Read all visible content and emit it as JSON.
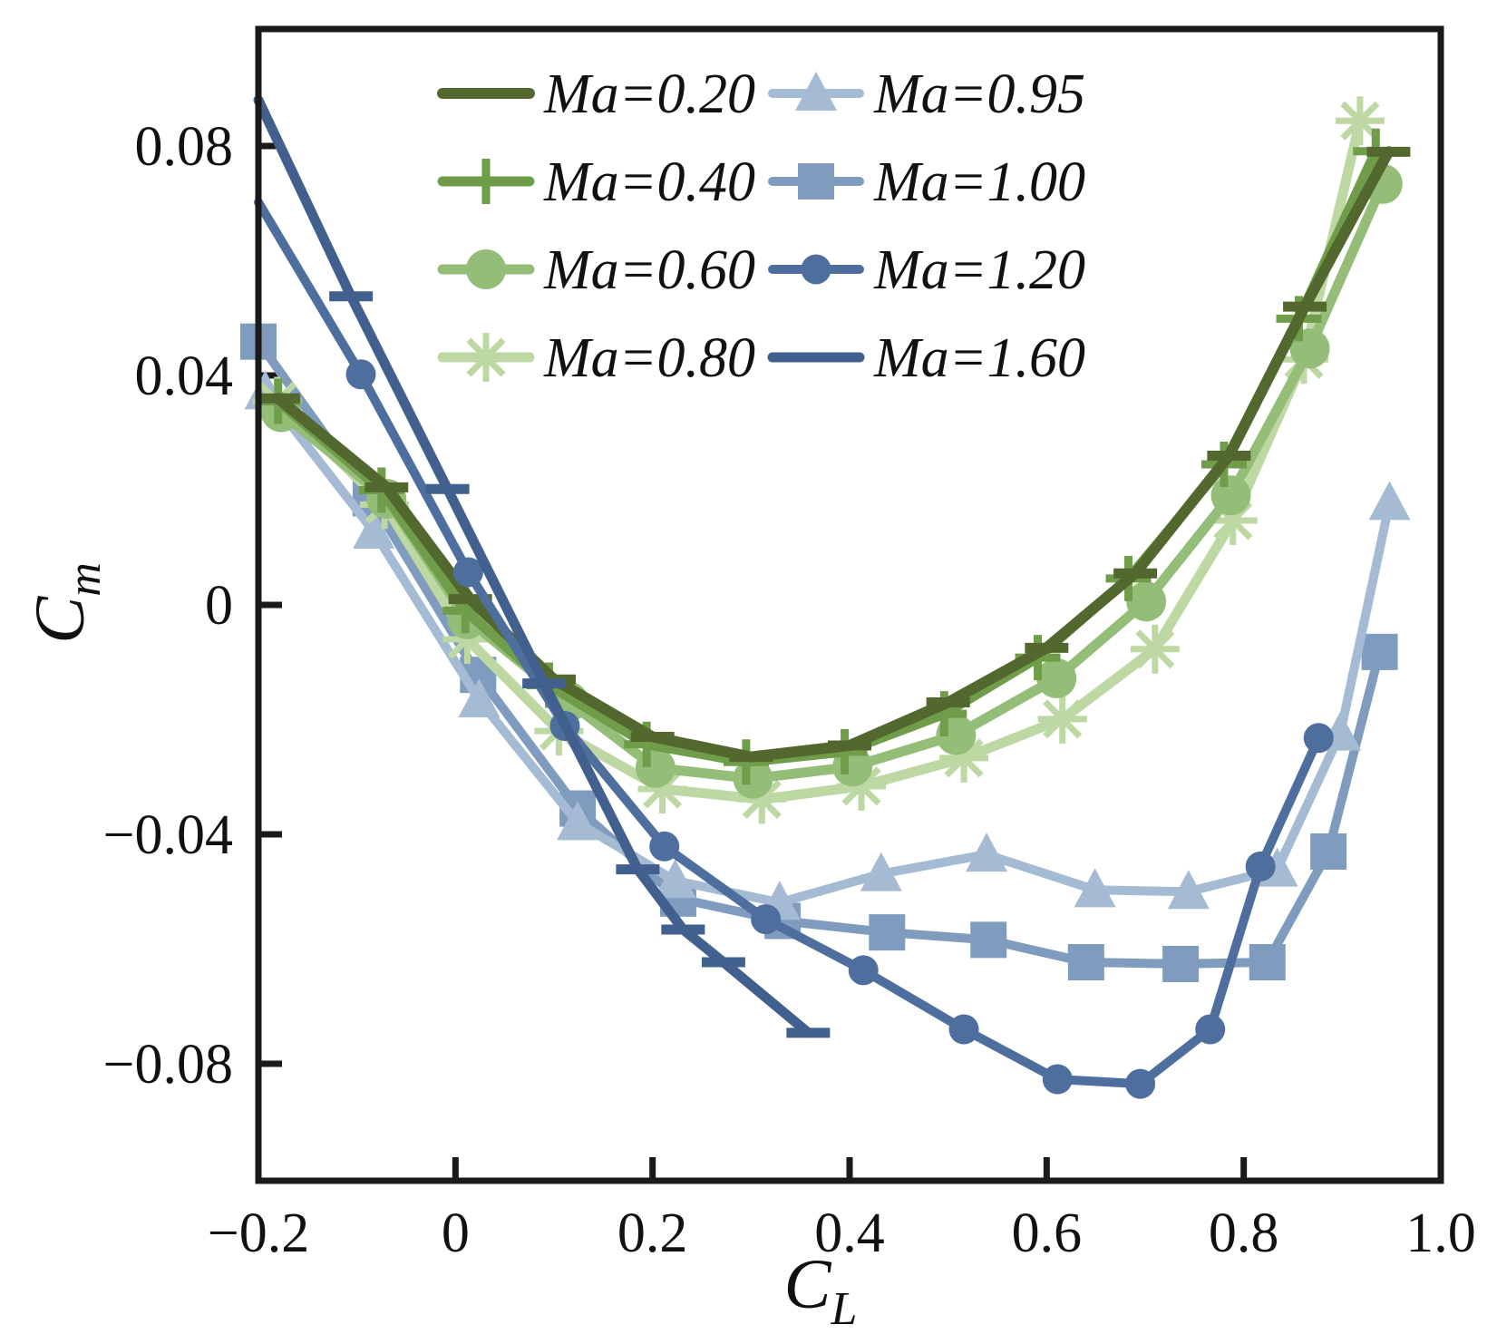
{
  "figure": {
    "background": "#ffffff",
    "frame_color": "#1a1a1a"
  },
  "chart_data": {
    "type": "line",
    "title": "",
    "xlabel_main": "C",
    "xlabel_sub": "L",
    "ylabel_main": "C",
    "ylabel_sub": "m",
    "xlim": [
      -0.2,
      1.0
    ],
    "ylim": [
      -0.1004,
      0.1004
    ],
    "grid": false,
    "legend_position": "upper center, two columns, no frame",
    "x_ticks": [
      {
        "value": -0.2,
        "label": "−0.2",
        "mark": false
      },
      {
        "value": 0.0,
        "label": "0",
        "mark": true
      },
      {
        "value": 0.2,
        "label": "0.2",
        "mark": true
      },
      {
        "value": 0.4,
        "label": "0.4",
        "mark": true
      },
      {
        "value": 0.6,
        "label": "0.6",
        "mark": true
      },
      {
        "value": 0.8,
        "label": "0.8",
        "mark": true
      },
      {
        "value": 1.0,
        "label": "1.0",
        "mark": false
      }
    ],
    "y_ticks": [
      {
        "value": 0.08,
        "label": "0.08",
        "mark": true
      },
      {
        "value": 0.04,
        "label": "0.04",
        "mark": true
      },
      {
        "value": 0.0,
        "label": "0",
        "mark": true
      },
      {
        "value": -0.04,
        "label": "−0.04",
        "mark": true
      },
      {
        "value": -0.08,
        "label": "−0.08",
        "mark": true
      }
    ],
    "draw_order": [
      "Ma=1.00",
      "Ma=0.95",
      "Ma=0.80",
      "Ma=0.60",
      "Ma=0.40",
      "Ma=0.20",
      "Ma=1.20",
      "Ma=1.60"
    ],
    "series": [
      {
        "label": "Ma=0.20",
        "color": "#52682f",
        "marker": "dash",
        "line_width": 12,
        "marker_from_index": 0,
        "points": [
          [
            -0.18,
            0.036
          ],
          [
            -0.07,
            0.0205
          ],
          [
            0.015,
            0.001
          ],
          [
            0.1,
            -0.013
          ],
          [
            0.2,
            -0.023
          ],
          [
            0.3,
            -0.0265
          ],
          [
            0.4,
            -0.0245
          ],
          [
            0.5,
            -0.017
          ],
          [
            0.6,
            -0.0075
          ],
          [
            0.69,
            0.0055
          ],
          [
            0.785,
            0.026
          ],
          [
            0.862,
            0.052
          ],
          [
            0.947,
            0.079
          ]
        ]
      },
      {
        "label": "Ma=0.40",
        "color": "#6f9d49",
        "marker": "plus",
        "line_width": 11,
        "marker_from_index": 0,
        "points": [
          [
            -0.18,
            0.0355
          ],
          [
            -0.075,
            0.02
          ],
          [
            0.01,
            -0.001
          ],
          [
            0.095,
            -0.014
          ],
          [
            0.194,
            -0.0243
          ],
          [
            0.295,
            -0.0274
          ],
          [
            0.395,
            -0.0256
          ],
          [
            0.496,
            -0.019
          ],
          [
            0.591,
            -0.0092
          ],
          [
            0.683,
            0.0046
          ],
          [
            0.78,
            0.0245
          ],
          [
            0.856,
            0.0499
          ],
          [
            0.934,
            0.0791
          ]
        ]
      },
      {
        "label": "Ma=0.60",
        "color": "#94bd77",
        "marker": "circle",
        "line_width": 11,
        "marker_from_index": 0,
        "points": [
          [
            -0.177,
            0.0336
          ],
          [
            -0.07,
            0.0185
          ],
          [
            0.012,
            -0.0025
          ],
          [
            0.115,
            -0.0169
          ],
          [
            0.203,
            -0.0284
          ],
          [
            0.302,
            -0.0303
          ],
          [
            0.403,
            -0.0282
          ],
          [
            0.508,
            -0.0227
          ],
          [
            0.61,
            -0.0128
          ],
          [
            0.701,
            0.0006
          ],
          [
            0.787,
            0.0191
          ],
          [
            0.867,
            0.0447
          ],
          [
            0.941,
            0.0734
          ]
        ]
      },
      {
        "label": "Ma=0.80",
        "color": "#bdd8a3",
        "marker": "asterisk",
        "line_width": 11,
        "marker_from_index": 0,
        "points": [
          [
            -0.181,
            0.0355
          ],
          [
            -0.072,
            0.0175
          ],
          [
            0.012,
            -0.006
          ],
          [
            0.105,
            -0.022
          ],
          [
            0.21,
            -0.0321
          ],
          [
            0.311,
            -0.0339
          ],
          [
            0.412,
            -0.0316
          ],
          [
            0.516,
            -0.0267
          ],
          [
            0.616,
            -0.0199
          ],
          [
            0.71,
            -0.0077
          ],
          [
            0.789,
            0.0147
          ],
          [
            0.861,
            0.0428
          ],
          [
            0.918,
            0.0844
          ]
        ]
      },
      {
        "label": "Ma=0.95",
        "color": "#a5bad3",
        "marker": "triangle",
        "line_width": 10,
        "marker_from_index": 0,
        "points": [
          [
            -0.193,
            0.0371
          ],
          [
            -0.083,
            0.0128
          ],
          [
            0.024,
            -0.0166
          ],
          [
            0.124,
            -0.038
          ],
          [
            0.223,
            -0.0481
          ],
          [
            0.329,
            -0.0519
          ],
          [
            0.432,
            -0.0469
          ],
          [
            0.539,
            -0.0435
          ],
          [
            0.649,
            -0.0497
          ],
          [
            0.744,
            -0.05
          ],
          [
            0.834,
            -0.0461
          ],
          [
            0.898,
            -0.0224
          ],
          [
            0.948,
            0.0178
          ]
        ]
      },
      {
        "label": "Ma=1.00",
        "color": "#7f9cbe",
        "marker": "square",
        "line_width": 10,
        "marker_from_index": 0,
        "points": [
          [
            -0.2,
            0.0459
          ],
          [
            -0.086,
            0.0186
          ],
          [
            0.023,
            -0.0122
          ],
          [
            0.124,
            -0.0355
          ],
          [
            0.226,
            -0.0512
          ],
          [
            0.332,
            -0.0551
          ],
          [
            0.438,
            -0.0571
          ],
          [
            0.541,
            -0.0584
          ],
          [
            0.64,
            -0.0623
          ],
          [
            0.736,
            -0.0626
          ],
          [
            0.824,
            -0.0623
          ],
          [
            0.886,
            -0.043
          ],
          [
            0.938,
            -0.0082
          ]
        ]
      },
      {
        "label": "Ma=1.20",
        "color": "#4e6f9e",
        "marker": "dot",
        "line_width": 10,
        "marker_from_index": 1,
        "points": [
          [
            -0.2,
            0.0702
          ],
          [
            -0.096,
            0.0402
          ],
          [
            0.013,
            0.0057
          ],
          [
            0.111,
            -0.0211
          ],
          [
            0.212,
            -0.0421
          ],
          [
            0.315,
            -0.0548
          ],
          [
            0.414,
            -0.0637
          ],
          [
            0.516,
            -0.074
          ],
          [
            0.611,
            -0.0827
          ],
          [
            0.695,
            -0.0835
          ],
          [
            0.766,
            -0.074
          ],
          [
            0.817,
            -0.0456
          ],
          [
            0.876,
            -0.0232
          ]
        ]
      },
      {
        "label": "Ma=1.60",
        "color": "#42608d",
        "marker": "dash",
        "line_width": 11,
        "marker_from_index": 1,
        "points": [
          [
            -0.2,
            0.088
          ],
          [
            -0.106,
            0.0538
          ],
          [
            -0.008,
            0.0202
          ],
          [
            0.09,
            -0.0137
          ],
          [
            0.185,
            -0.0461
          ],
          [
            0.231,
            -0.0566
          ],
          [
            0.272,
            -0.0623
          ],
          [
            0.358,
            -0.0746
          ]
        ]
      }
    ],
    "legend": {
      "column1": [
        "Ma=0.20",
        "Ma=0.40",
        "Ma=0.60",
        "Ma=0.80"
      ],
      "column2": [
        "Ma=0.95",
        "Ma=1.00",
        "Ma=1.20",
        "Ma=1.60"
      ]
    }
  }
}
